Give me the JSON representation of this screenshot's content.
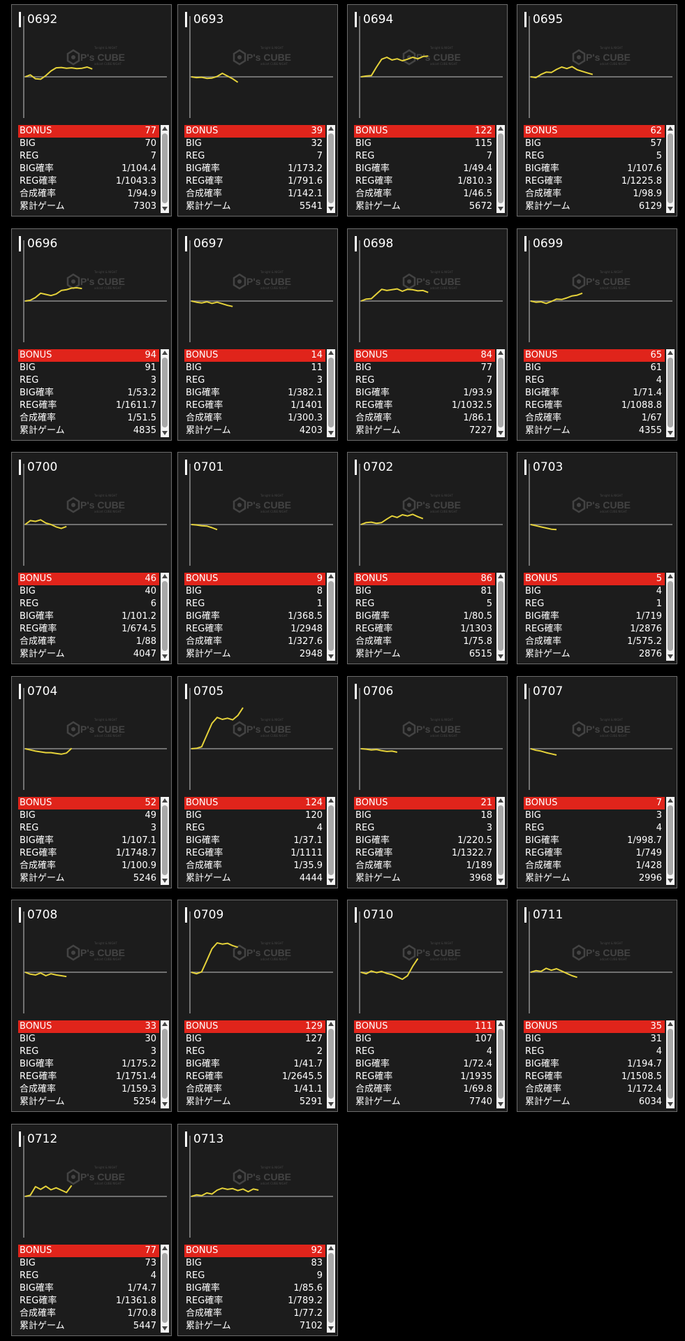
{
  "watermark": {
    "brand": "P's CUBE",
    "small_top": "Tonight & NIGHT",
    "small_bottom": "adcart CUBE NIGHT"
  },
  "colors": {
    "graph_line": "#e5d23a",
    "bonus_bg": "#e0241b",
    "card_bg": "#1c1c1c"
  },
  "labels": {
    "bonus": "BONUS",
    "big": "BIG",
    "reg": "REG",
    "big_rate": "BIG確率",
    "reg_rate": "REG確率",
    "combined_rate": "合成確率",
    "total_games": "累計ゲーム"
  },
  "machines": [
    {
      "id": "0692",
      "bonus": "77",
      "big": "70",
      "reg": "7",
      "big_rate": "1/104.4",
      "reg_rate": "1/1043.3",
      "combined_rate": "1/94.9",
      "total_games": "7303",
      "graph": [
        0,
        0.5,
        -0.5,
        -0.6,
        0.3,
        1.5,
        2.3,
        2.4,
        2.2,
        2.3,
        2.1,
        2.2,
        2.5,
        2.0
      ]
    },
    {
      "id": "0693",
      "bonus": "39",
      "big": "32",
      "reg": "7",
      "big_rate": "1/173.2",
      "reg_rate": "1/791.6",
      "combined_rate": "1/142.1",
      "total_games": "5541",
      "graph": [
        0,
        -0.2,
        -0.1,
        -0.4,
        -0.3,
        0.1,
        0.9,
        0.2,
        -0.5,
        -1.4
      ]
    },
    {
      "id": "0694",
      "bonus": "122",
      "big": "115",
      "reg": "7",
      "big_rate": "1/49.4",
      "reg_rate": "1/810.3",
      "combined_rate": "1/46.5",
      "total_games": "5672",
      "graph": [
        0,
        0.2,
        0.3,
        2.5,
        4.5,
        5.0,
        4.3,
        4.6,
        4.1,
        4.5,
        5.0,
        4.6,
        5.2,
        5.3
      ]
    },
    {
      "id": "0695",
      "bonus": "62",
      "big": "57",
      "reg": "5",
      "big_rate": "1/107.6",
      "reg_rate": "1/1225.8",
      "combined_rate": "1/98.9",
      "total_games": "6129",
      "graph": [
        0,
        -0.2,
        0.6,
        1.2,
        1.1,
        1.9,
        2.5,
        2.1,
        2.6,
        1.8,
        1.4,
        1.0,
        0.6
      ]
    },
    {
      "id": "0696",
      "bonus": "94",
      "big": "91",
      "reg": "3",
      "big_rate": "1/53.2",
      "reg_rate": "1/1611.7",
      "combined_rate": "1/51.5",
      "total_games": "4835",
      "graph": [
        0,
        0.2,
        0.9,
        2.0,
        1.7,
        1.4,
        1.8,
        2.7,
        2.9,
        3.3,
        3.4,
        3.2
      ]
    },
    {
      "id": "0697",
      "bonus": "14",
      "big": "11",
      "reg": "3",
      "big_rate": "1/382.1",
      "reg_rate": "1/1401",
      "combined_rate": "1/300.3",
      "total_games": "4203",
      "graph": [
        0,
        -0.3,
        -0.5,
        -0.2,
        -0.6,
        -0.3,
        -0.7,
        -1.1,
        -1.4
      ]
    },
    {
      "id": "0698",
      "bonus": "84",
      "big": "77",
      "reg": "7",
      "big_rate": "1/93.9",
      "reg_rate": "1/1032.5",
      "combined_rate": "1/86.1",
      "total_games": "7227",
      "graph": [
        0,
        0.5,
        0.6,
        1.8,
        3.0,
        2.7,
        2.9,
        3.1,
        2.5,
        3.0,
        2.9,
        2.6,
        2.7,
        2.2
      ]
    },
    {
      "id": "0699",
      "bonus": "65",
      "big": "61",
      "reg": "4",
      "big_rate": "1/71.4",
      "reg_rate": "1/1088.8",
      "combined_rate": "1/67",
      "total_games": "4355",
      "graph": [
        0,
        -0.3,
        -0.2,
        -0.6,
        -0.1,
        0.5,
        0.4,
        0.8,
        1.3,
        1.5,
        2.0
      ]
    },
    {
      "id": "0700",
      "bonus": "46",
      "big": "40",
      "reg": "6",
      "big_rate": "1/101.2",
      "reg_rate": "1/674.5",
      "combined_rate": "1/88",
      "total_games": "4047",
      "graph": [
        0,
        1.0,
        0.8,
        1.2,
        0.4,
        0.0,
        -0.6,
        -1.0,
        -0.5
      ]
    },
    {
      "id": "0701",
      "bonus": "9",
      "big": "8",
      "reg": "1",
      "big_rate": "1/368.5",
      "reg_rate": "1/2948",
      "combined_rate": "1/327.6",
      "total_games": "2948",
      "graph": [
        0,
        -0.1,
        -0.3,
        -0.4,
        -0.8,
        -1.3
      ]
    },
    {
      "id": "0702",
      "bonus": "86",
      "big": "81",
      "reg": "5",
      "big_rate": "1/80.5",
      "reg_rate": "1/1303",
      "combined_rate": "1/75.8",
      "total_games": "6515",
      "graph": [
        0,
        0.5,
        0.6,
        0.3,
        0.5,
        1.4,
        2.2,
        1.8,
        2.5,
        2.2,
        2.6,
        2.0,
        1.5
      ]
    },
    {
      "id": "0703",
      "bonus": "5",
      "big": "4",
      "reg": "1",
      "big_rate": "1/719",
      "reg_rate": "1/2876",
      "combined_rate": "1/575.2",
      "total_games": "2876",
      "graph": [
        0,
        -0.3,
        -0.6,
        -0.9,
        -1.2,
        -1.3
      ]
    },
    {
      "id": "0704",
      "bonus": "52",
      "big": "49",
      "reg": "3",
      "big_rate": "1/107.1",
      "reg_rate": "1/1748.7",
      "combined_rate": "1/100.9",
      "total_games": "5246",
      "graph": [
        0,
        -0.3,
        -0.6,
        -0.8,
        -1.0,
        -1.0,
        -1.2,
        -1.4,
        -1.1,
        0.1
      ]
    },
    {
      "id": "0705",
      "bonus": "124",
      "big": "120",
      "reg": "4",
      "big_rate": "1/37.1",
      "reg_rate": "1/1111",
      "combined_rate": "1/35.9",
      "total_games": "4444",
      "graph": [
        0,
        0.1,
        0.5,
        3.5,
        6.5,
        8.0,
        7.5,
        7.8,
        7.4,
        8.5,
        10.5
      ]
    },
    {
      "id": "0706",
      "bonus": "21",
      "big": "18",
      "reg": "3",
      "big_rate": "1/220.5",
      "reg_rate": "1/1322.7",
      "combined_rate": "1/189",
      "total_games": "3968",
      "graph": [
        0,
        -0.1,
        -0.3,
        -0.2,
        -0.5,
        -0.7,
        -0.6,
        -0.9
      ]
    },
    {
      "id": "0707",
      "bonus": "7",
      "big": "3",
      "reg": "4",
      "big_rate": "1/998.7",
      "reg_rate": "1/749",
      "combined_rate": "1/428",
      "total_games": "2996",
      "graph": [
        0,
        -0.4,
        -0.6,
        -1.0,
        -1.3,
        -1.6
      ]
    },
    {
      "id": "0708",
      "bonus": "33",
      "big": "30",
      "reg": "3",
      "big_rate": "1/175.2",
      "reg_rate": "1/1751.4",
      "combined_rate": "1/159.3",
      "total_games": "5254",
      "graph": [
        0,
        -0.5,
        -0.7,
        -0.2,
        -0.9,
        -0.4,
        -0.7,
        -0.9,
        -1.1
      ]
    },
    {
      "id": "0709",
      "bonus": "129",
      "big": "127",
      "reg": "2",
      "big_rate": "1/41.7",
      "reg_rate": "1/2645.5",
      "combined_rate": "1/41.1",
      "total_games": "5291",
      "graph": [
        0,
        -0.4,
        0.1,
        3.0,
        6.0,
        7.5,
        7.2,
        7.4,
        6.8,
        6.4
      ]
    },
    {
      "id": "0710",
      "bonus": "111",
      "big": "107",
      "reg": "4",
      "big_rate": "1/72.4",
      "reg_rate": "1/1935",
      "combined_rate": "1/69.8",
      "total_games": "7740",
      "graph": [
        0,
        -0.4,
        0.3,
        -0.1,
        0.2,
        -0.3,
        -0.6,
        -1.2,
        -1.8,
        -0.9,
        1.5,
        3.5
      ]
    },
    {
      "id": "0711",
      "bonus": "35",
      "big": "31",
      "reg": "4",
      "big_rate": "1/194.7",
      "reg_rate": "1/1508.5",
      "combined_rate": "1/172.4",
      "total_games": "6034",
      "graph": [
        0,
        0.4,
        0.2,
        1.0,
        0.5,
        0.9,
        0.3,
        -0.3,
        -0.9,
        -1.3
      ]
    },
    {
      "id": "0712",
      "bonus": "77",
      "big": "73",
      "reg": "4",
      "big_rate": "1/74.7",
      "reg_rate": "1/1361.8",
      "combined_rate": "1/70.8",
      "total_games": "5447",
      "graph": [
        0,
        0.3,
        2.5,
        1.8,
        2.6,
        1.7,
        2.2,
        1.6,
        1.0,
        2.8
      ]
    },
    {
      "id": "0713",
      "bonus": "92",
      "big": "83",
      "reg": "9",
      "big_rate": "1/85.6",
      "reg_rate": "1/789.2",
      "combined_rate": "1/77.2",
      "total_games": "7102",
      "graph": [
        0,
        0.4,
        0.2,
        0.9,
        0.6,
        1.6,
        2.1,
        1.8,
        2.0,
        1.5,
        1.9,
        1.2,
        1.9,
        1.6
      ]
    }
  ]
}
